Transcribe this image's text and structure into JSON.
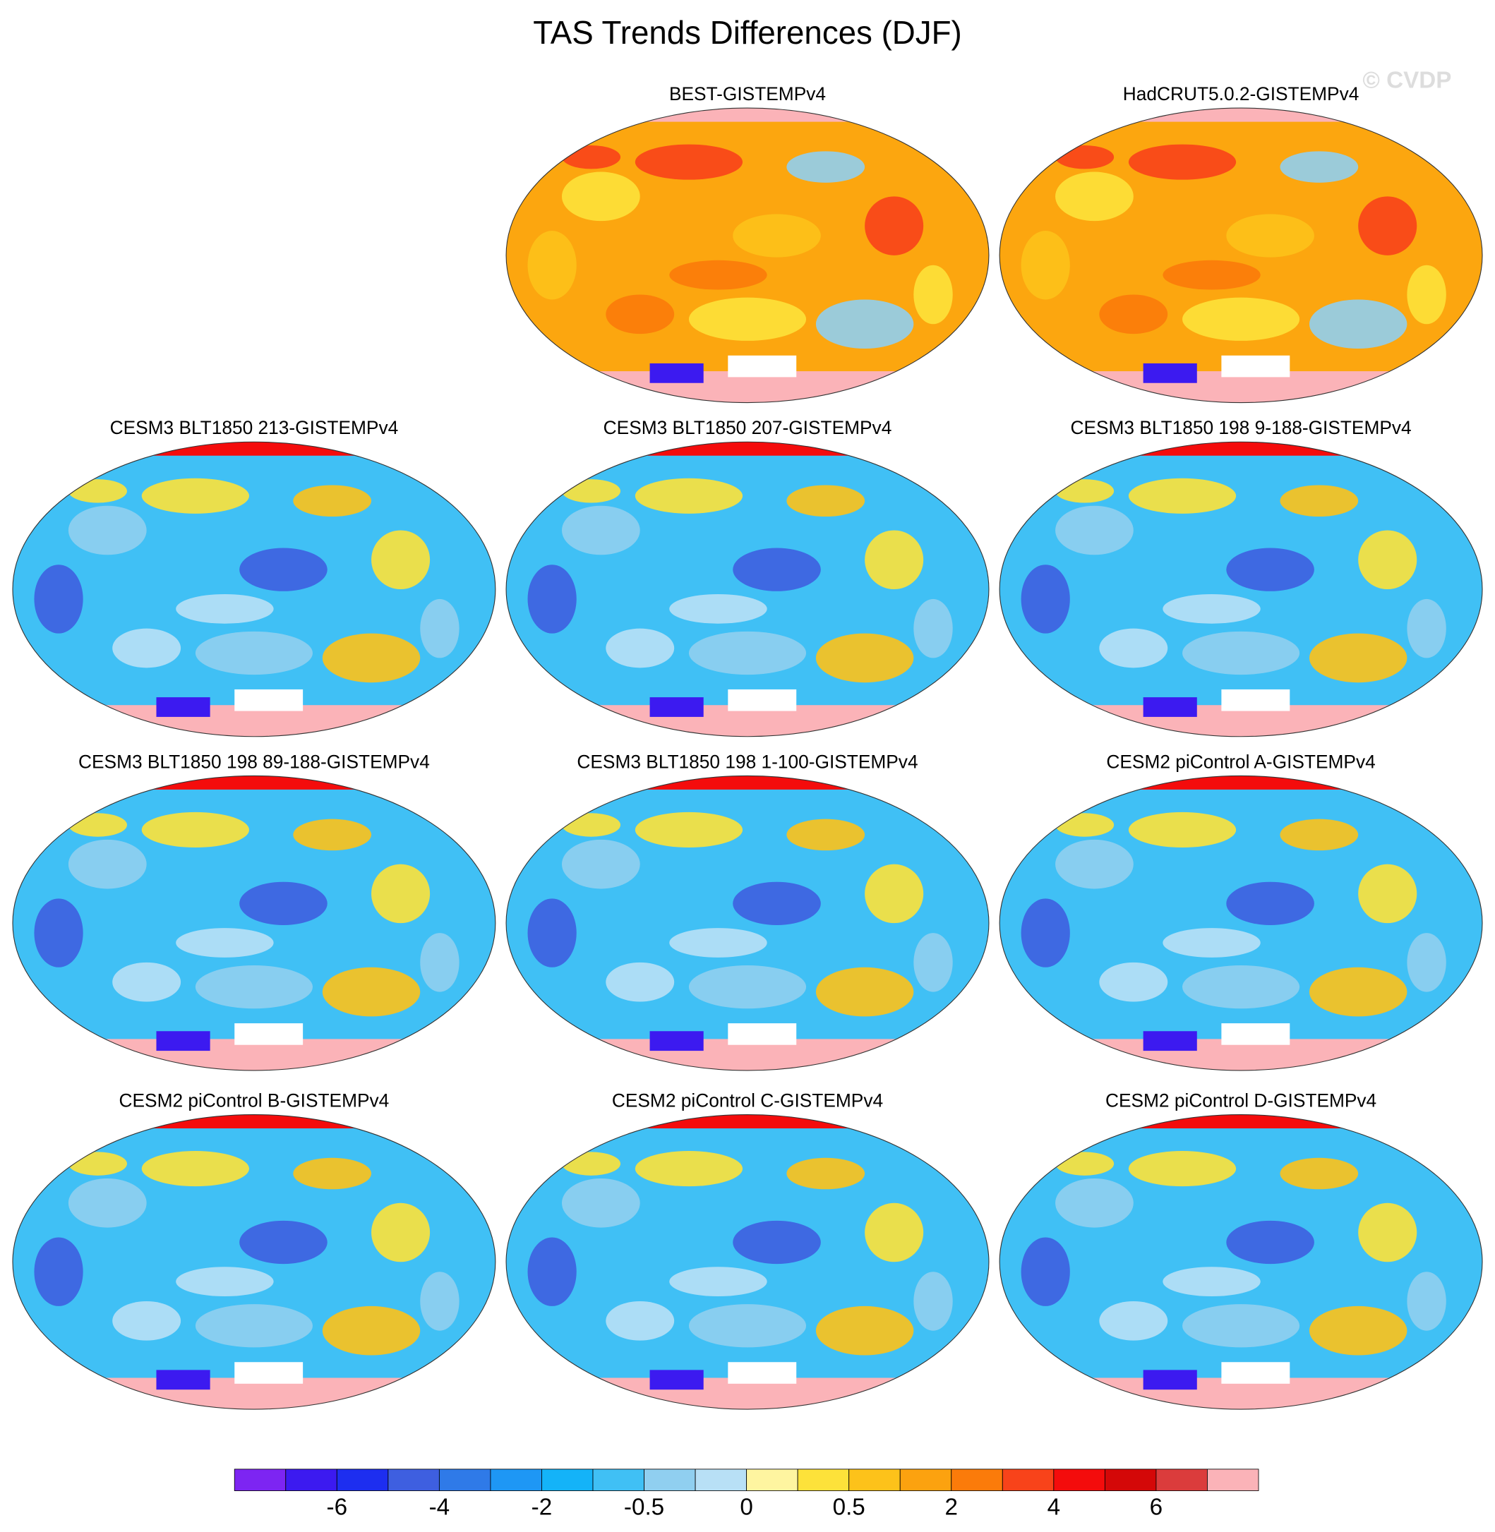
{
  "title": "TAS Trends Differences (DJF)",
  "watermark": "© CVDP",
  "panels": [
    {
      "title": "BEST-GISTEMPv4"
    },
    {
      "title": "HadCRUT5.0.2-GISTEMPv4"
    },
    {
      "title": "CESM3 BLT1850 213-GISTEMPv4"
    },
    {
      "title": "CESM3 BLT1850 207-GISTEMPv4"
    },
    {
      "title": "CESM3 BLT1850 198 9-188-GISTEMPv4"
    },
    {
      "title": "CESM3 BLT1850 198 89-188-GISTEMPv4"
    },
    {
      "title": "CESM3 BLT1850 198 1-100-GISTEMPv4"
    },
    {
      "title": "CESM2 piControl A-GISTEMPv4"
    },
    {
      "title": "CESM2 piControl B-GISTEMPv4"
    },
    {
      "title": "CESM2 piControl C-GISTEMPv4"
    },
    {
      "title": "CESM2 piControl D-GISTEMPv4"
    }
  ],
  "colorbar": {
    "colors": [
      "#7d25f2",
      "#3c1af0",
      "#1d2ef0",
      "#3e5fe0",
      "#2f7ae8",
      "#1e97f5",
      "#14b3f8",
      "#40c0f5",
      "#90cff0",
      "#b8e0f6",
      "#fef5a0",
      "#fde23a",
      "#fdc21a",
      "#fca20f",
      "#fb7b0a",
      "#f8431a",
      "#f40c0c",
      "#d40808",
      "#db3c3c",
      "#fbb3b8"
    ],
    "labels": [
      -6,
      -4,
      -2,
      -0.5,
      0,
      0.5,
      2,
      4,
      6
    ]
  }
}
